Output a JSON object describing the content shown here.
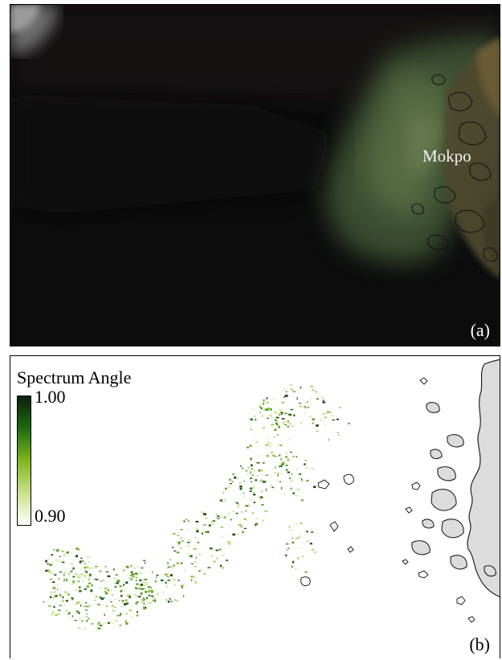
{
  "panel_a": {
    "place_label": "Mokpo",
    "panel_tag": "(a)"
  },
  "panel_b": {
    "legend_title": "Spectrum Angle",
    "colorbar_max": "1.00",
    "colorbar_min": "0.90",
    "panel_tag": "(b)",
    "colorbar_colors": [
      "#0a1f0a",
      "#1e6b12",
      "#7fb51c",
      "#c9e08a",
      "#ffffff"
    ],
    "land_color": "#dcdcdc"
  }
}
